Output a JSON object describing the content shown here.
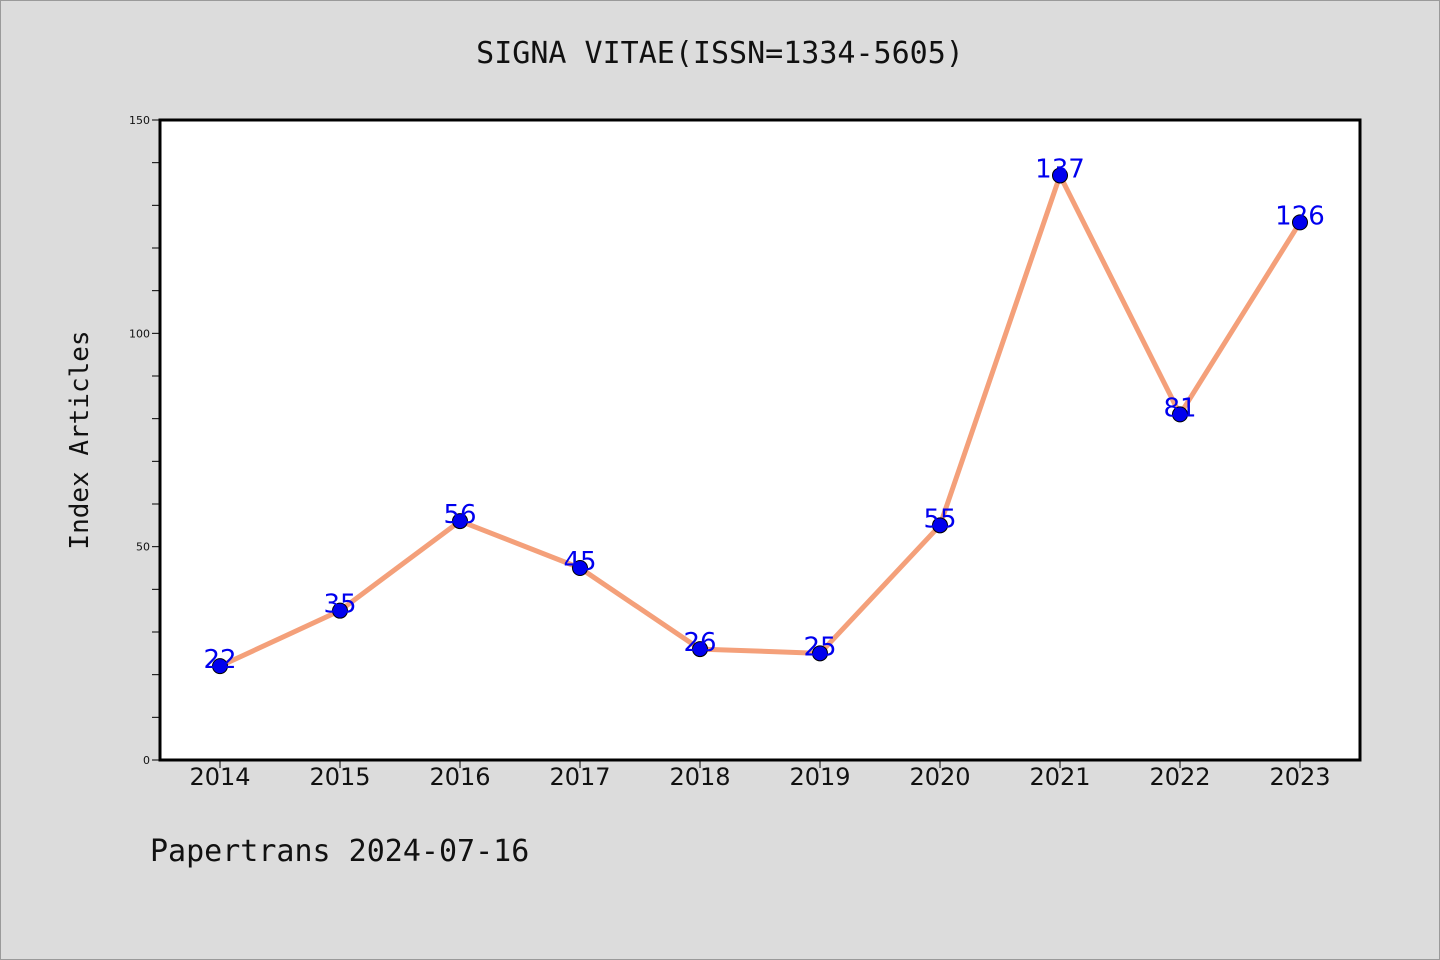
{
  "title": "SIGNA VITAE(ISSN=1334-5605)",
  "footer": "Papertrans 2024-07-16",
  "colors": {
    "line": "#f4a07a",
    "marker": "#0000ee",
    "label": "#0000ee",
    "background": "#dcdcdc",
    "plot_bg": "#ffffff"
  },
  "chart_data": {
    "type": "line",
    "title": "SIGNA VITAE(ISSN=1334-5605)",
    "xlabel": "",
    "ylabel": "Index Articles",
    "categories": [
      "2014",
      "2015",
      "2016",
      "2017",
      "2018",
      "2019",
      "2020",
      "2021",
      "2022",
      "2023"
    ],
    "series": [
      {
        "values": [
          22,
          35,
          56,
          45,
          26,
          25,
          55,
          137,
          81,
          126
        ]
      }
    ],
    "ylim": [
      0,
      150
    ],
    "yticks": [
      0,
      50,
      100,
      150
    ],
    "grid": false,
    "legend": "none"
  }
}
